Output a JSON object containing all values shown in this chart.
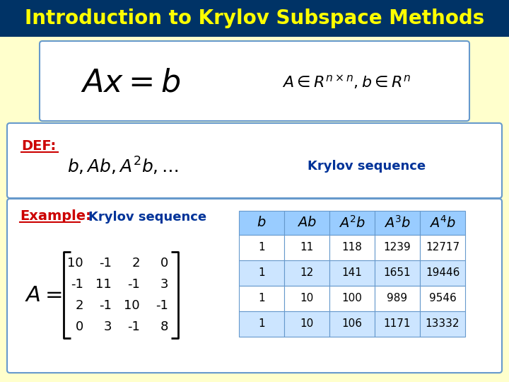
{
  "title": "Introduction to Krylov Subspace Methods",
  "title_color": "#FFFF00",
  "title_bg": "#003366",
  "slide_bg": "#FFFFCC",
  "eq1_latex": "$Ax = b$",
  "eq2_latex": "$A \\in R^{n \\times n}, b \\in R^n$",
  "def_label": "DEF:",
  "def_eq": "$b, Ab, A^2b, \\ldots$",
  "def_label2": "Krylov sequence",
  "example_label": "Example:",
  "example_label2": "Krylov sequence",
  "matrix_rows": [
    [
      "10",
      "-1",
      "2",
      "0"
    ],
    [
      "-1",
      "11",
      "-1",
      "3"
    ],
    [
      "2",
      "-1",
      "10",
      "-1"
    ],
    [
      "0",
      "3",
      "-1",
      "8"
    ]
  ],
  "table_headers": [
    "$b$",
    "$Ab$",
    "$A^2b$",
    "$A^3b$",
    "$A^4b$"
  ],
  "table_data": [
    [
      "1",
      "11",
      "118",
      "1239",
      "12717"
    ],
    [
      "1",
      "12",
      "141",
      "1651",
      "19446"
    ],
    [
      "1",
      "10",
      "100",
      "989",
      "9546"
    ],
    [
      "1",
      "10",
      "106",
      "1171",
      "13332"
    ]
  ],
  "table_header_bg": "#99CCFF",
  "table_row_bg": [
    "#FFFFFF",
    "#CCE5FF",
    "#FFFFFF",
    "#CCE5FF"
  ],
  "box_border": "#6699CC",
  "red_color": "#CC0000",
  "dark_blue": "#003399"
}
